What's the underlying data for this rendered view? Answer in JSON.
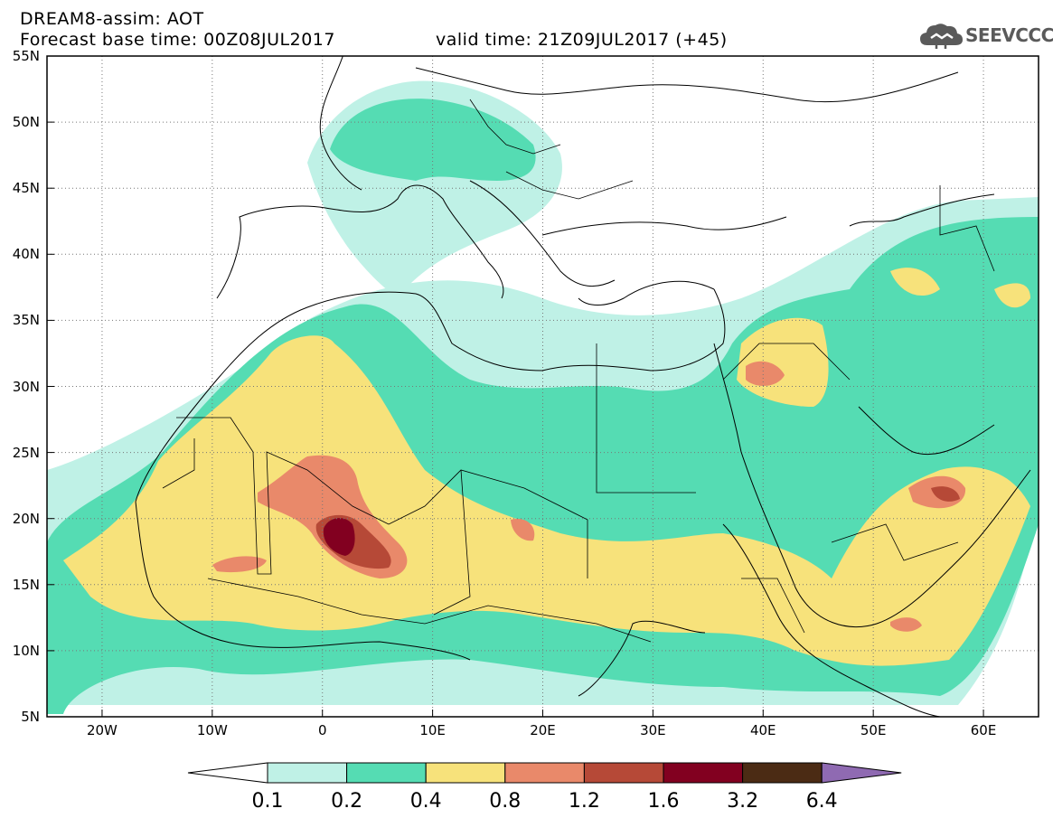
{
  "header": {
    "line1": "DREAM8-assim: AOT",
    "line2": "Forecast base time: 00Z08JUL2017",
    "line3": "valid time: 21Z09JUL2017 (+45)"
  },
  "logo": {
    "text": "SEEVCCC",
    "icon": "cloud-icon",
    "color": "#5a5a5a"
  },
  "map": {
    "extent": {
      "lon": [
        -25,
        65
      ],
      "lat": [
        5,
        55
      ]
    },
    "lat_ticks": [
      "55N",
      "50N",
      "45N",
      "40N",
      "35N",
      "30N",
      "25N",
      "20N",
      "15N",
      "10N",
      "5N"
    ],
    "lon_ticks": [
      "20W",
      "10W",
      "0",
      "10E",
      "20E",
      "30E",
      "40E",
      "50E",
      "60E"
    ]
  },
  "colorbar": {
    "levels": [
      "0.1",
      "0.2",
      "0.4",
      "0.8",
      "1.2",
      "1.6",
      "3.2",
      "6.4"
    ],
    "colors": [
      "#ffffff",
      "#bff1e6",
      "#55dcb3",
      "#f7e27b",
      "#e9896a",
      "#b64937",
      "#820020",
      "#4b2b14",
      "#8f6ab2"
    ]
  }
}
